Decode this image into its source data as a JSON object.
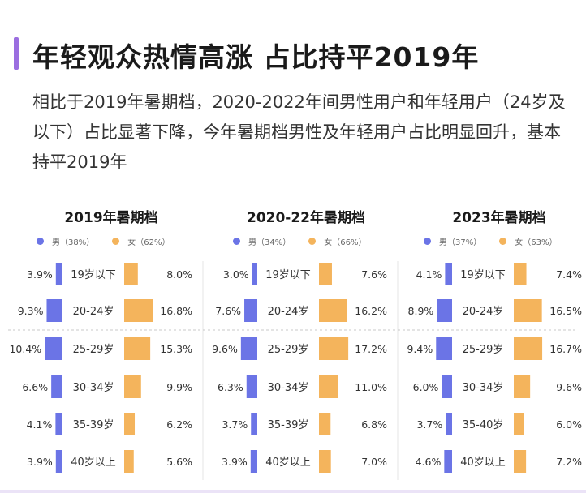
{
  "header": {
    "title": "年轻观众热情高涨 占比持平2019年",
    "subtitle": "相比于2019年暑期档，2020-2022年间男性用户和年轻用户（24岁及以下）占比显著下降，今年暑期档男性及年轻用户占比明显回升，基本持平2019年"
  },
  "colors": {
    "male": "#6b74e6",
    "female": "#f4b45c",
    "accent": "#9b6ee0"
  },
  "chart_data": [
    {
      "type": "bar",
      "title": "2019年暑期档",
      "legend": {
        "male": "男（38%）",
        "female": "女（62%）"
      },
      "categories": [
        "19岁以下",
        "20-24岁",
        "25-29岁",
        "30-34岁",
        "35-39岁",
        "40岁以上"
      ],
      "series": [
        {
          "name": "男",
          "values": [
            3.9,
            9.3,
            10.4,
            6.6,
            4.1,
            3.9
          ],
          "labels": [
            "3.9%",
            "9.3%",
            "10.4%",
            "6.6%",
            "4.1%",
            "3.9%"
          ]
        },
        {
          "name": "女",
          "values": [
            8.0,
            16.8,
            15.3,
            9.9,
            6.2,
            5.6
          ],
          "labels": [
            "8.0%",
            "16.8%",
            "15.3%",
            "9.9%",
            "6.2%",
            "5.6%"
          ]
        }
      ]
    },
    {
      "type": "bar",
      "title": "2020-22年暑期档",
      "legend": {
        "male": "男（34%）",
        "female": "女（66%）"
      },
      "categories": [
        "19岁以下",
        "20-24岁",
        "25-29岁",
        "30-34岁",
        "35-39岁",
        "40岁以上"
      ],
      "series": [
        {
          "name": "男",
          "values": [
            3.0,
            7.6,
            9.6,
            6.3,
            3.7,
            3.9
          ],
          "labels": [
            "3.0%",
            "7.6%",
            "9.6%",
            "6.3%",
            "3.7%",
            "3.9%"
          ]
        },
        {
          "name": "女",
          "values": [
            7.6,
            16.2,
            17.2,
            11.0,
            6.8,
            7.0
          ],
          "labels": [
            "7.6%",
            "16.2%",
            "17.2%",
            "11.0%",
            "6.8%",
            "7.0%"
          ]
        }
      ]
    },
    {
      "type": "bar",
      "title": "2023年暑期档",
      "legend": {
        "male": "男（37%）",
        "female": "女（63%）"
      },
      "categories": [
        "19岁以下",
        "20-24岁",
        "25-29岁",
        "30-34岁",
        "35-40岁",
        "40岁以上"
      ],
      "series": [
        {
          "name": "男",
          "values": [
            4.1,
            8.9,
            9.4,
            6.0,
            3.7,
            4.6
          ],
          "labels": [
            "4.1%",
            "8.9%",
            "9.4%",
            "6.0%",
            "3.7%",
            "4.6%"
          ]
        },
        {
          "name": "女",
          "values": [
            7.4,
            16.5,
            16.7,
            9.6,
            6.0,
            7.2
          ],
          "labels": [
            "7.4%",
            "16.5%",
            "16.7%",
            "9.6%",
            "6.0%",
            "7.2%"
          ]
        }
      ]
    }
  ]
}
